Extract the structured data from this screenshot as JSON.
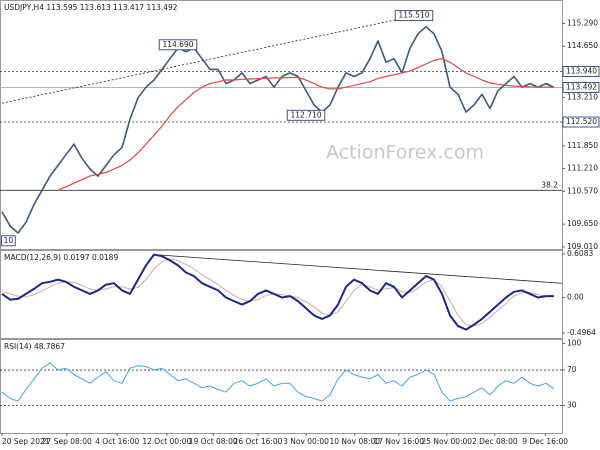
{
  "chart_data": [
    {
      "type": "line",
      "title": "USDJPY,H4 113.595 113.613 113.417 113.492",
      "watermark": "ActionForex.com",
      "xlim": [
        -0.25,
        70
      ],
      "ylim": [
        108.95,
        115.95
      ],
      "yticks": [
        {
          "value": 115.29,
          "label": "115.290"
        },
        {
          "value": 114.65,
          "label": "114.650"
        },
        {
          "value": 113.21,
          "label": "113.210"
        },
        {
          "value": 111.85,
          "label": "111.850"
        },
        {
          "value": 111.21,
          "label": "111.210"
        },
        {
          "value": 110.57,
          "label": "110.570"
        },
        {
          "value": 109.65,
          "label": "109.650"
        },
        {
          "value": 109.01,
          "label": "109.010"
        }
      ],
      "levels": [
        {
          "value": 113.94,
          "label": "113.940",
          "style": "dashed"
        },
        {
          "value": 113.492,
          "label": "113.492",
          "style": "solid"
        },
        {
          "value": 112.52,
          "label": "112.520",
          "style": "dashed"
        },
        {
          "value": 110.6,
          "label": "38.2",
          "style": "fib"
        }
      ],
      "annotations": [
        {
          "label": "114.690",
          "x": 22,
          "value": 114.69
        },
        {
          "label": "115.510",
          "x": 51.5,
          "value": 115.51
        },
        {
          "label": "112.710",
          "x": 38,
          "value": 112.71
        },
        {
          "label": "10",
          "x": 0.8,
          "value": 109.18
        }
      ],
      "trendlines": [
        {
          "x": [
            0,
            51.5
          ],
          "y": [
            113.05,
            115.5
          ],
          "dash": true
        }
      ],
      "series": [
        {
          "name": "USDJPY",
          "color": "#3d5a78",
          "width": 1.6,
          "values": [
            110.0,
            109.6,
            109.4,
            109.7,
            110.2,
            110.6,
            111.0,
            111.3,
            111.6,
            111.9,
            111.5,
            111.2,
            111.0,
            111.3,
            111.6,
            111.8,
            112.6,
            113.2,
            113.5,
            113.7,
            114.0,
            114.3,
            114.6,
            114.5,
            114.6,
            114.3,
            114.0,
            114.0,
            113.6,
            113.7,
            113.9,
            113.6,
            113.7,
            113.8,
            113.5,
            113.8,
            113.9,
            113.8,
            113.4,
            113.0,
            112.8,
            113.0,
            113.5,
            113.9,
            113.8,
            113.9,
            114.3,
            114.8,
            114.2,
            114.3,
            113.9,
            114.6,
            115.0,
            115.2,
            115.0,
            114.5,
            113.5,
            113.3,
            112.8,
            113.0,
            113.3,
            112.9,
            113.4,
            113.6,
            113.8,
            113.5,
            113.6,
            113.5,
            113.6,
            113.492
          ]
        },
        {
          "name": "MA",
          "color": "#e04848",
          "width": 1.2,
          "values": [
            null,
            null,
            null,
            null,
            null,
            null,
            null,
            110.6,
            110.7,
            110.8,
            110.9,
            111.0,
            111.05,
            111.1,
            111.2,
            111.3,
            111.45,
            111.65,
            111.9,
            112.15,
            112.4,
            112.7,
            112.95,
            113.15,
            113.35,
            113.5,
            113.6,
            113.65,
            113.7,
            113.7,
            113.72,
            113.73,
            113.74,
            113.75,
            113.76,
            113.76,
            113.77,
            113.77,
            113.7,
            113.6,
            113.5,
            113.45,
            113.45,
            113.5,
            113.55,
            113.6,
            113.65,
            113.75,
            113.8,
            113.85,
            113.9,
            113.95,
            114.05,
            114.15,
            114.25,
            114.3,
            114.2,
            114.05,
            113.9,
            113.8,
            113.7,
            113.62,
            113.58,
            113.55,
            113.53,
            113.52,
            113.51,
            113.5,
            113.5,
            113.5
          ]
        }
      ]
    },
    {
      "type": "line",
      "title": "MACD(12,26,9) 0.0197 0.0189",
      "xlim": [
        -0.25,
        70
      ],
      "ylim": [
        -0.567,
        0.665
      ],
      "yticks": [
        0.6083,
        {
          "value": 0,
          "label": "0.00"
        },
        -0.4964
      ],
      "trendlines": [
        {
          "x": [
            19,
            70
          ],
          "y": [
            0.6,
            0.2
          ],
          "dash": false
        }
      ],
      "series": [
        {
          "name": "Signal",
          "color": "#d4a9a9",
          "width": 1,
          "values": [
            0.08,
            0.05,
            0.02,
            0.01,
            0.04,
            0.09,
            0.15,
            0.2,
            0.22,
            0.21,
            0.17,
            0.12,
            0.1,
            0.12,
            0.15,
            0.15,
            0.12,
            0.14,
            0.25,
            0.4,
            0.5,
            0.54,
            0.52,
            0.46,
            0.4,
            0.32,
            0.25,
            0.18,
            0.1,
            0.03,
            -0.03,
            -0.05,
            -0.03,
            0.03,
            0.05,
            0.04,
            0.02,
            0.0,
            -0.06,
            -0.13,
            -0.22,
            -0.25,
            -0.2,
            -0.05,
            0.1,
            0.18,
            0.15,
            0.1,
            0.12,
            0.14,
            0.08,
            0.07,
            0.13,
            0.22,
            0.25,
            0.15,
            -0.05,
            -0.25,
            -0.38,
            -0.4,
            -0.36,
            -0.28,
            -0.18,
            -0.08,
            0.02,
            0.07,
            0.07,
            0.04,
            0.02,
            0.0189
          ]
        },
        {
          "name": "MACD",
          "color": "#1c2a80",
          "width": 2,
          "values": [
            0.05,
            -0.03,
            -0.02,
            0.05,
            0.12,
            0.2,
            0.22,
            0.25,
            0.22,
            0.15,
            0.1,
            0.05,
            0.1,
            0.18,
            0.2,
            0.1,
            0.05,
            0.25,
            0.45,
            0.6,
            0.58,
            0.52,
            0.45,
            0.35,
            0.3,
            0.2,
            0.15,
            0.1,
            0.0,
            -0.05,
            -0.1,
            -0.05,
            0.05,
            0.1,
            0.05,
            0.0,
            0.02,
            -0.05,
            -0.15,
            -0.25,
            -0.3,
            -0.25,
            -0.1,
            0.15,
            0.25,
            0.2,
            0.1,
            0.05,
            0.2,
            0.15,
            0.0,
            0.1,
            0.2,
            0.3,
            0.25,
            0.05,
            -0.25,
            -0.4,
            -0.45,
            -0.38,
            -0.3,
            -0.2,
            -0.1,
            0.0,
            0.08,
            0.1,
            0.05,
            0.0,
            0.02,
            0.0197
          ]
        }
      ]
    },
    {
      "type": "line",
      "title": "RSI(14) 48.7867",
      "xlim": [
        -0.25,
        70
      ],
      "ylim": [
        -1,
        105
      ],
      "yticks": [
        100,
        70,
        30
      ],
      "levels": [
        70,
        30
      ],
      "xticks": [
        {
          "value": 0,
          "label": "20 Sep 2021"
        },
        {
          "value": 8.1,
          "label": "27 Sep 08:00"
        },
        {
          "value": 14.4,
          "label": "4 Oct 16:00"
        },
        {
          "value": 20.6,
          "label": "12 Oct 00:00"
        },
        {
          "value": 26.4,
          "label": "19 Oct 08:00"
        },
        {
          "value": 32,
          "label": "26 Oct 16:00"
        },
        {
          "value": 38,
          "label": "3 Nov 00:00"
        },
        {
          "value": 44.1,
          "label": "10 Nov 08:00"
        },
        {
          "value": 49.6,
          "label": "17 Nov 16:00"
        },
        {
          "value": 55.6,
          "label": "25 Nov 00:00"
        },
        {
          "value": 61.6,
          "label": "2 Dec 08:00"
        },
        {
          "value": 67.9,
          "label": "9 Dec 16:00"
        }
      ],
      "series": [
        {
          "name": "RSI",
          "color": "#4aa3e0",
          "width": 1,
          "values": [
            45,
            38,
            35,
            48,
            60,
            72,
            78,
            70,
            72,
            65,
            60,
            55,
            62,
            68,
            58,
            55,
            72,
            75,
            74,
            70,
            72,
            65,
            58,
            60,
            55,
            50,
            52,
            48,
            45,
            55,
            58,
            52,
            55,
            60,
            52,
            55,
            55,
            45,
            40,
            38,
            35,
            42,
            60,
            70,
            65,
            62,
            60,
            65,
            55,
            58,
            52,
            62,
            65,
            70,
            65,
            45,
            35,
            38,
            40,
            45,
            50,
            42,
            52,
            58,
            55,
            62,
            55,
            52,
            55,
            48.7867
          ]
        }
      ]
    }
  ]
}
